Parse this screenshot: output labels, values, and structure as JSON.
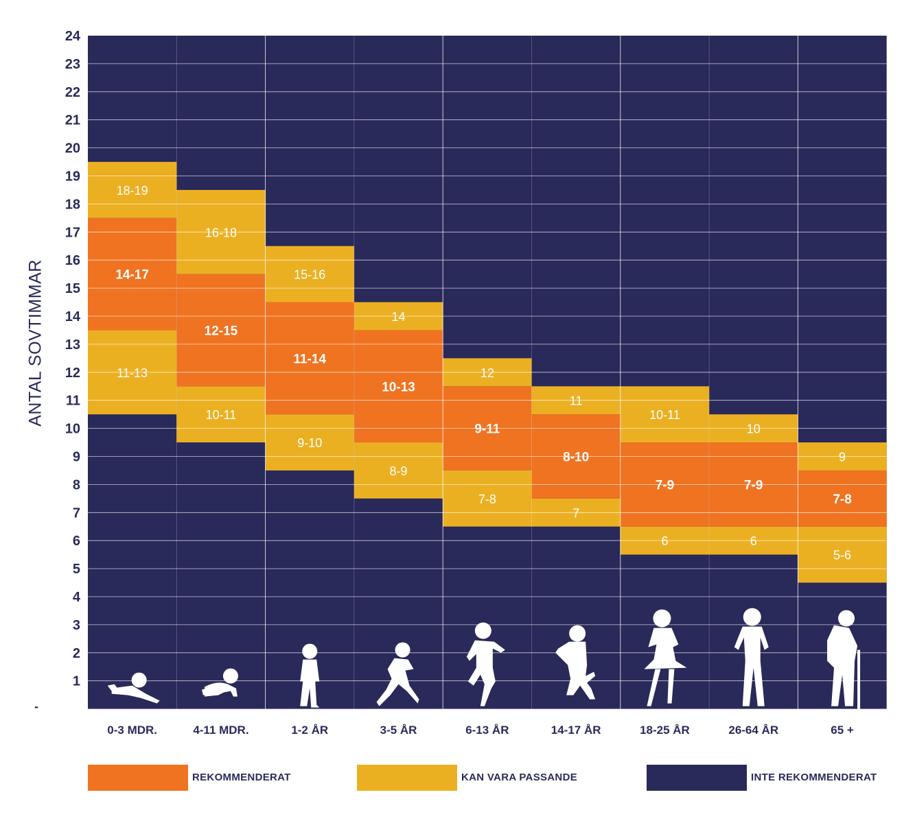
{
  "chart_data": {
    "type": "heatmap",
    "ylabel": "ANTAL SOVTIMMAR",
    "y_dash_label": "-",
    "y_ticks": [
      1,
      2,
      3,
      4,
      5,
      6,
      7,
      8,
      9,
      10,
      11,
      12,
      13,
      14,
      15,
      16,
      17,
      18,
      19,
      20,
      21,
      22,
      23,
      24
    ],
    "ylim": [
      0,
      24
    ],
    "categories": [
      "0-3 MDR.",
      "4-11 MDR.",
      "1-2 ÅR",
      "3-5 ÅR",
      "6-13 ÅR",
      "14-17 ÅR",
      "18-25 ÅR",
      "26-64 ÅR",
      "65 +"
    ],
    "colors": {
      "recommended": "#ef7321",
      "may_be_appropriate": "#ebb022",
      "not_recommended": "#29295a",
      "grid": "#ffffff"
    },
    "series": [
      {
        "name": "REKOMMENDERAT",
        "key": "recommended",
        "bands": [
          {
            "range": [
              14,
              17
            ],
            "label": "14-17"
          },
          {
            "range": [
              12,
              15
            ],
            "label": "12-15"
          },
          {
            "range": [
              11,
              14
            ],
            "label": "11-14"
          },
          {
            "range": [
              10,
              13
            ],
            "label": "10-13"
          },
          {
            "range": [
              9,
              11
            ],
            "label": "9-11"
          },
          {
            "range": [
              8,
              10
            ],
            "label": "8-10"
          },
          {
            "range": [
              7,
              9
            ],
            "label": "7-9"
          },
          {
            "range": [
              7,
              9
            ],
            "label": "7-9"
          },
          {
            "range": [
              7,
              8
            ],
            "label": "7-8"
          }
        ]
      },
      {
        "name": "KAN VARA PASSANDE",
        "key": "may_be_appropriate",
        "bands_upper": [
          {
            "range": [
              18,
              19
            ],
            "label": "18-19"
          },
          {
            "range": [
              16,
              18
            ],
            "label": "16-18"
          },
          {
            "range": [
              15,
              16
            ],
            "label": "15-16"
          },
          {
            "range": [
              14,
              14
            ],
            "label": "14"
          },
          {
            "range": [
              12,
              12
            ],
            "label": "12"
          },
          {
            "range": [
              11,
              11
            ],
            "label": "11"
          },
          {
            "range": [
              10,
              11
            ],
            "label": "10-11"
          },
          {
            "range": [
              10,
              10
            ],
            "label": "10"
          },
          {
            "range": [
              9,
              9
            ],
            "label": "9"
          }
        ],
        "bands_lower": [
          {
            "range": [
              11,
              13
            ],
            "label": "11-13"
          },
          {
            "range": [
              10,
              11
            ],
            "label": "10-11"
          },
          {
            "range": [
              9,
              10
            ],
            "label": "9-10"
          },
          {
            "range": [
              8,
              9
            ],
            "label": "8-9"
          },
          {
            "range": [
              7,
              8
            ],
            "label": "7-8"
          },
          {
            "range": [
              7,
              7
            ],
            "label": "7"
          },
          {
            "range": [
              6,
              6
            ],
            "label": "6"
          },
          {
            "range": [
              6,
              6
            ],
            "label": "6"
          },
          {
            "range": [
              5,
              6
            ],
            "label": "5-6"
          }
        ]
      },
      {
        "name": "INTE REKOMMENDERAT",
        "key": "not_recommended"
      }
    ],
    "icons": [
      "infant-lying-silhouette-icon",
      "baby-crawling-silhouette-icon",
      "toddler-walking-silhouette-icon",
      "child-running-silhouette-icon",
      "kid-running-silhouette-icon",
      "teen-jumping-silhouette-icon",
      "young-woman-silhouette-icon",
      "adult-woman-silhouette-icon",
      "elderly-with-cane-silhouette-icon"
    ]
  },
  "legend": [
    {
      "label": "REKOMMENDERAT",
      "color": "#ef7321"
    },
    {
      "label": "KAN VARA PASSANDE",
      "color": "#ebb022"
    },
    {
      "label": "INTE REKOMMENDERAT",
      "color": "#29295a"
    }
  ]
}
